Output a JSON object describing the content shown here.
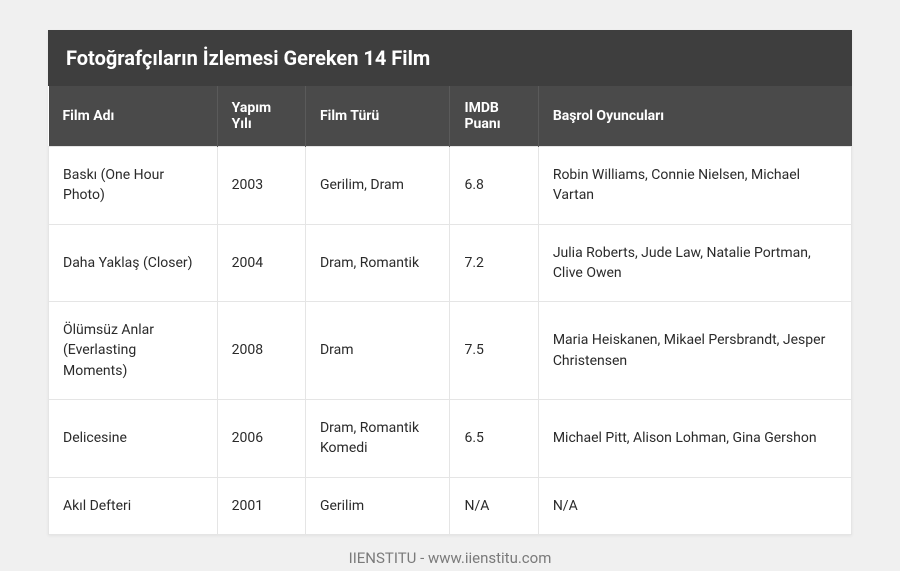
{
  "title": "Fotoğrafçıların İzlemesi Gereken 14 Film",
  "columns": {
    "name": "Film Adı",
    "year": "Yapım Yılı",
    "genre": "Film Türü",
    "rating": "IMDB Puanı",
    "cast": "Başrol Oyuncuları"
  },
  "rows": [
    {
      "name": "Baskı (One Hour Photo)",
      "year": "2003",
      "genre": "Gerilim, Dram",
      "rating": "6.8",
      "cast": "Robin Williams, Connie Nielsen, Michael Vartan"
    },
    {
      "name": "Daha Yaklaş (Closer)",
      "year": "2004",
      "genre": "Dram, Romantik",
      "rating": "7.2",
      "cast": "Julia Roberts, Jude Law, Natalie Portman, Clive Owen"
    },
    {
      "name": "Ölümsüz Anlar (Everlasting Moments)",
      "year": "2008",
      "genre": "Dram",
      "rating": "7.5",
      "cast": "Maria Heiskanen, Mikael Persbrandt, Jesper Christensen"
    },
    {
      "name": "Delicesine",
      "year": "2006",
      "genre": "Dram, Romantik Komedi",
      "rating": "6.5",
      "cast": "Michael Pitt, Alison Lohman, Gina Gershon"
    },
    {
      "name": "Akıl Defteri",
      "year": "2001",
      "genre": "Gerilim",
      "rating": "N/A",
      "cast": "N/A"
    }
  ],
  "footer": "IIENSTITU - www.iienstitu.com",
  "colors": {
    "title_bg": "#3e3e3e",
    "header_bg": "#4a4a4a",
    "header_border": "#5a5a5a",
    "cell_border": "#e5e5e5",
    "page_bg": "#f0f0f0",
    "table_bg": "#ffffff",
    "text_dark": "#2a2a2a",
    "text_light": "#ffffff",
    "footer_text": "#7a7a7a"
  },
  "typography": {
    "title_fontsize": 20,
    "title_weight": 700,
    "header_fontsize": 14,
    "header_weight": 700,
    "cell_fontsize": 14,
    "footer_fontsize": 15
  },
  "layout": {
    "column_widths_pct": {
      "name": 21,
      "year": 11,
      "genre": 18,
      "rating": 11,
      "cast": 39
    }
  }
}
